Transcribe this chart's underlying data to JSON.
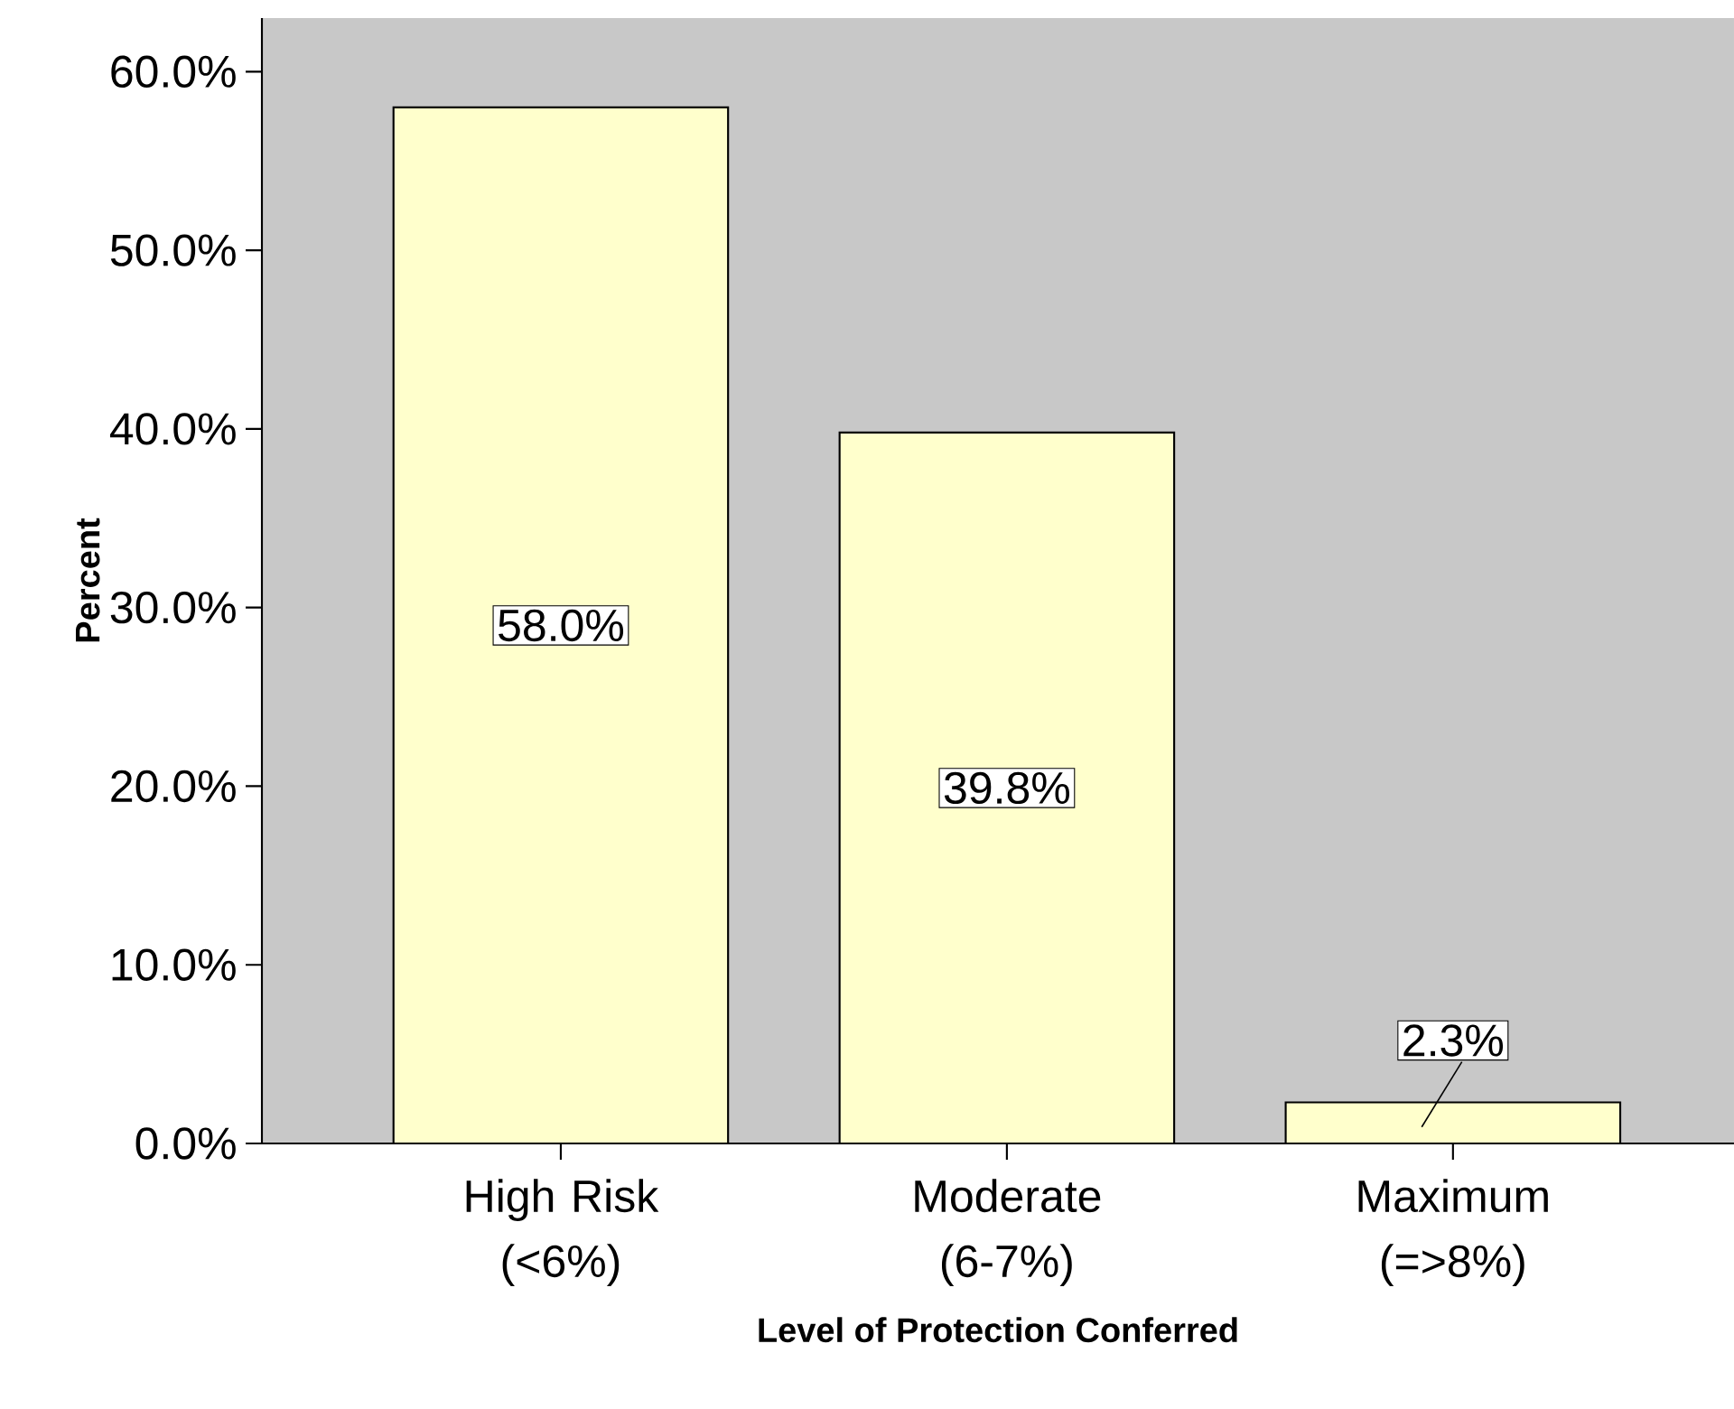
{
  "chart_data": {
    "type": "bar",
    "xlabel": "Level of Protection Conferred",
    "ylabel": "Percent",
    "categories": [
      "High Risk (<6%)",
      "Moderate (6-7%)",
      "Maximum (=>8%)"
    ],
    "values": [
      58.0,
      39.8,
      2.3
    ],
    "value_labels": [
      "58.0%",
      "39.8%",
      "2.3%"
    ],
    "color": "#ffffcc",
    "ylim": [
      0,
      63
    ],
    "yticks": [
      {
        "value": 0,
        "label": "0.0%"
      },
      {
        "value": 10,
        "label": "10.0%"
      },
      {
        "value": 20,
        "label": "20.0%"
      },
      {
        "value": 30,
        "label": "30.0%"
      },
      {
        "value": 40,
        "label": "40.0%"
      },
      {
        "value": 50,
        "label": "50.0%"
      },
      {
        "value": 60,
        "label": "60.0%"
      }
    ],
    "grid": false
  }
}
